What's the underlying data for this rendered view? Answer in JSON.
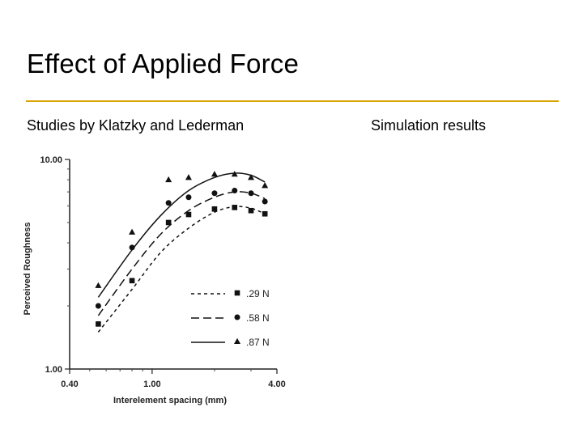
{
  "slide": {
    "title": "Effect of Applied Force",
    "left_caption": "Studies by Klatzky and Lederman",
    "right_caption": "Simulation results",
    "accent_color": "#d9a400"
  },
  "chart_data": {
    "type": "scatter",
    "xlabel": "Interelement spacing (mm)",
    "ylabel": "Perceived Roughness",
    "x_scale": "log",
    "y_scale": "log",
    "xlim": [
      0.4,
      4.0
    ],
    "ylim": [
      1.0,
      10.0
    ],
    "x_tick_labels": [
      "0.40",
      "1.00",
      "4.00"
    ],
    "x_ticks": [
      0.4,
      1.0,
      4.0
    ],
    "y_tick_labels": [
      "1.00",
      "10.00"
    ],
    "y_ticks": [
      1.0,
      10.0
    ],
    "legend_position": "bottom-right",
    "series": [
      {
        "name": ".29 N",
        "marker": "square",
        "line_style": "short-dash",
        "x": [
          0.55,
          0.8,
          1.2,
          1.5,
          2.0,
          2.5,
          3.0,
          3.5
        ],
        "y": [
          1.64,
          2.64,
          5.0,
          5.46,
          5.8,
          5.9,
          5.7,
          5.5
        ],
        "fit_x": [
          0.55,
          0.8,
          1.1,
          1.5,
          2.0,
          2.5,
          3.0,
          3.5
        ],
        "fit_y": [
          1.5,
          2.4,
          3.6,
          4.7,
          5.6,
          5.95,
          5.85,
          5.5
        ]
      },
      {
        "name": ".58 N",
        "marker": "circle",
        "line_style": "long-dash",
        "x": [
          0.55,
          0.8,
          1.2,
          1.5,
          2.0,
          2.5,
          3.0,
          3.5
        ],
        "y": [
          2.0,
          3.8,
          6.2,
          6.6,
          6.9,
          7.1,
          6.9,
          6.3
        ],
        "fit_x": [
          0.55,
          0.8,
          1.1,
          1.5,
          2.0,
          2.5,
          3.0,
          3.5
        ],
        "fit_y": [
          1.8,
          3.0,
          4.4,
          5.7,
          6.6,
          7.0,
          6.9,
          6.5
        ]
      },
      {
        "name": ".87 N",
        "marker": "triangle",
        "line_style": "solid",
        "x": [
          0.55,
          0.8,
          1.2,
          1.5,
          2.0,
          2.5,
          3.0,
          3.5
        ],
        "y": [
          2.5,
          4.5,
          8.0,
          8.2,
          8.5,
          8.5,
          8.2,
          7.5
        ],
        "fit_x": [
          0.55,
          0.8,
          1.1,
          1.5,
          2.0,
          2.5,
          3.0,
          3.5
        ],
        "fit_y": [
          2.2,
          3.7,
          5.4,
          7.1,
          8.2,
          8.6,
          8.4,
          7.8
        ]
      }
    ]
  }
}
